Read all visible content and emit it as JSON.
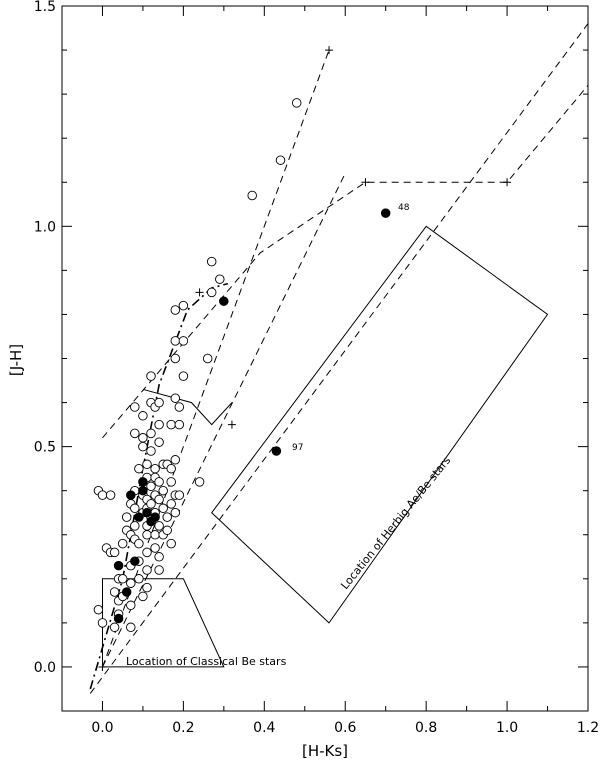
{
  "chart_data": {
    "type": "scatter",
    "xlabel": "[H-Ks]",
    "ylabel": "[J-H]",
    "xlim": [
      -0.1,
      1.2
    ],
    "ylim": [
      -0.1,
      1.5
    ],
    "x_ticks": [
      "0.0",
      "0.2",
      "0.4",
      "0.6",
      "0.8",
      "1.0",
      "1.2"
    ],
    "x_tick_values": [
      0.0,
      0.2,
      0.4,
      0.6,
      0.8,
      1.0,
      1.2
    ],
    "y_ticks": [
      "0.0",
      "0.5",
      "1.0",
      "1.5"
    ],
    "y_tick_values": [
      0.0,
      0.5,
      1.0,
      1.5
    ],
    "grid": false,
    "series": [
      {
        "marker": "open-circle",
        "points": [
          [
            -0.01,
            0.4
          ],
          [
            0.0,
            0.39
          ],
          [
            0.02,
            0.39
          ],
          [
            0.01,
            0.27
          ],
          [
            0.02,
            0.26
          ],
          [
            0.03,
            0.26
          ],
          [
            -0.01,
            0.13
          ],
          [
            0.0,
            0.1
          ],
          [
            0.03,
            0.09
          ],
          [
            0.03,
            0.17
          ],
          [
            0.04,
            0.2
          ],
          [
            0.04,
            0.15
          ],
          [
            0.04,
            0.12
          ],
          [
            0.05,
            0.16
          ],
          [
            0.05,
            0.2
          ],
          [
            0.05,
            0.28
          ],
          [
            0.06,
            0.31
          ],
          [
            0.06,
            0.34
          ],
          [
            0.07,
            0.37
          ],
          [
            0.07,
            0.3
          ],
          [
            0.07,
            0.23
          ],
          [
            0.07,
            0.19
          ],
          [
            0.07,
            0.14
          ],
          [
            0.07,
            0.09
          ],
          [
            0.08,
            0.29
          ],
          [
            0.08,
            0.32
          ],
          [
            0.08,
            0.36
          ],
          [
            0.08,
            0.4
          ],
          [
            0.08,
            0.59
          ],
          [
            0.08,
            0.53
          ],
          [
            0.09,
            0.45
          ],
          [
            0.09,
            0.28
          ],
          [
            0.09,
            0.24
          ],
          [
            0.09,
            0.2
          ],
          [
            0.1,
            0.16
          ],
          [
            0.1,
            0.35
          ],
          [
            0.1,
            0.39
          ],
          [
            0.1,
            0.5
          ],
          [
            0.1,
            0.52
          ],
          [
            0.1,
            0.57
          ],
          [
            0.11,
            0.18
          ],
          [
            0.11,
            0.22
          ],
          [
            0.11,
            0.26
          ],
          [
            0.11,
            0.3
          ],
          [
            0.11,
            0.32
          ],
          [
            0.11,
            0.36
          ],
          [
            0.11,
            0.38
          ],
          [
            0.11,
            0.43
          ],
          [
            0.11,
            0.46
          ],
          [
            0.12,
            0.34
          ],
          [
            0.12,
            0.37
          ],
          [
            0.12,
            0.41
          ],
          [
            0.12,
            0.49
          ],
          [
            0.12,
            0.53
          ],
          [
            0.12,
            0.6
          ],
          [
            0.12,
            0.66
          ],
          [
            0.13,
            0.27
          ],
          [
            0.13,
            0.3
          ],
          [
            0.13,
            0.35
          ],
          [
            0.13,
            0.39
          ],
          [
            0.13,
            0.43
          ],
          [
            0.13,
            0.45
          ],
          [
            0.13,
            0.59
          ],
          [
            0.14,
            0.22
          ],
          [
            0.14,
            0.25
          ],
          [
            0.14,
            0.32
          ],
          [
            0.14,
            0.38
          ],
          [
            0.14,
            0.42
          ],
          [
            0.14,
            0.51
          ],
          [
            0.14,
            0.6
          ],
          [
            0.14,
            0.55
          ],
          [
            0.15,
            0.3
          ],
          [
            0.15,
            0.36
          ],
          [
            0.15,
            0.4
          ],
          [
            0.15,
            0.46
          ],
          [
            0.16,
            0.31
          ],
          [
            0.16,
            0.34
          ],
          [
            0.16,
            0.46
          ],
          [
            0.17,
            0.28
          ],
          [
            0.17,
            0.37
          ],
          [
            0.17,
            0.42
          ],
          [
            0.17,
            0.45
          ],
          [
            0.17,
            0.55
          ],
          [
            0.18,
            0.35
          ],
          [
            0.18,
            0.39
          ],
          [
            0.18,
            0.47
          ],
          [
            0.18,
            0.61
          ],
          [
            0.18,
            0.7
          ],
          [
            0.18,
            0.74
          ],
          [
            0.18,
            0.81
          ],
          [
            0.19,
            0.39
          ],
          [
            0.19,
            0.55
          ],
          [
            0.19,
            0.59
          ],
          [
            0.2,
            0.66
          ],
          [
            0.2,
            0.74
          ],
          [
            0.2,
            0.82
          ],
          [
            0.24,
            0.42
          ],
          [
            0.26,
            0.7
          ],
          [
            0.27,
            0.85
          ],
          [
            0.27,
            0.92
          ],
          [
            0.29,
            0.88
          ],
          [
            0.37,
            1.07
          ],
          [
            0.44,
            1.15
          ],
          [
            0.48,
            1.28
          ]
        ]
      },
      {
        "marker": "filled-circle",
        "points": [
          [
            0.04,
            0.11
          ],
          [
            0.06,
            0.17
          ],
          [
            0.04,
            0.23
          ],
          [
            0.08,
            0.24
          ],
          [
            0.07,
            0.39
          ],
          [
            0.09,
            0.34
          ],
          [
            0.1,
            0.4
          ],
          [
            0.1,
            0.42
          ],
          [
            0.11,
            0.35
          ],
          [
            0.12,
            0.33
          ],
          [
            0.13,
            0.34
          ],
          [
            0.3,
            0.83
          ],
          [
            0.43,
            0.49
          ],
          [
            0.7,
            1.03
          ]
        ]
      }
    ],
    "point_labels": [
      {
        "text": "48",
        "x": 0.7,
        "y": 1.03
      },
      {
        "text": "97",
        "x": 0.43,
        "y": 0.49
      }
    ],
    "annotations": [
      {
        "text": "Location of Classical Be stars"
      },
      {
        "text": "Location of Herbig Ae/Be stars"
      }
    ],
    "lines": [
      {
        "style": "dashed",
        "points": [
          [
            0.0,
            0.0
          ],
          [
            0.56,
            1.4
          ]
        ]
      },
      {
        "style": "dashed",
        "points": [
          [
            -0.03,
            -0.06
          ],
          [
            1.2,
            1.46
          ]
        ]
      },
      {
        "style": "dashed",
        "points": [
          [
            0.0,
            0.0
          ],
          [
            0.6,
            1.12
          ]
        ]
      },
      {
        "style": "dashed",
        "points": [
          [
            0.0,
            0.52
          ],
          [
            0.39,
            0.94
          ],
          [
            0.65,
            1.1
          ],
          [
            1.0,
            1.1
          ],
          [
            1.2,
            1.32
          ]
        ]
      },
      {
        "style": "solid",
        "points": [
          [
            0.1,
            0.63
          ],
          [
            0.22,
            0.6
          ],
          [
            0.27,
            0.55
          ],
          [
            0.32,
            0.6
          ]
        ]
      },
      {
        "style": "dash-dot",
        "points": [
          [
            -0.03,
            -0.05
          ],
          [
            0.05,
            0.2
          ],
          [
            0.1,
            0.45
          ],
          [
            0.14,
            0.64
          ],
          [
            0.21,
            0.81
          ],
          [
            0.27,
            0.86
          ],
          [
            0.31,
            0.87
          ]
        ]
      }
    ],
    "cross_markers": [
      [
        0.0,
        0.0
      ],
      [
        0.24,
        0.85
      ],
      [
        0.32,
        0.55
      ],
      [
        0.56,
        1.4
      ],
      [
        0.65,
        1.1
      ],
      [
        1.0,
        1.1
      ]
    ],
    "regions": [
      {
        "name": "classical-be-box",
        "points": [
          [
            0.0,
            0.0
          ],
          [
            0.0,
            0.2
          ],
          [
            0.2,
            0.2
          ],
          [
            0.3,
            0.0
          ]
        ]
      },
      {
        "name": "herbig-aebe-box",
        "points": [
          [
            0.27,
            0.35
          ],
          [
            0.56,
            0.1
          ],
          [
            1.1,
            0.8
          ],
          [
            0.8,
            1.0
          ]
        ]
      }
    ]
  }
}
